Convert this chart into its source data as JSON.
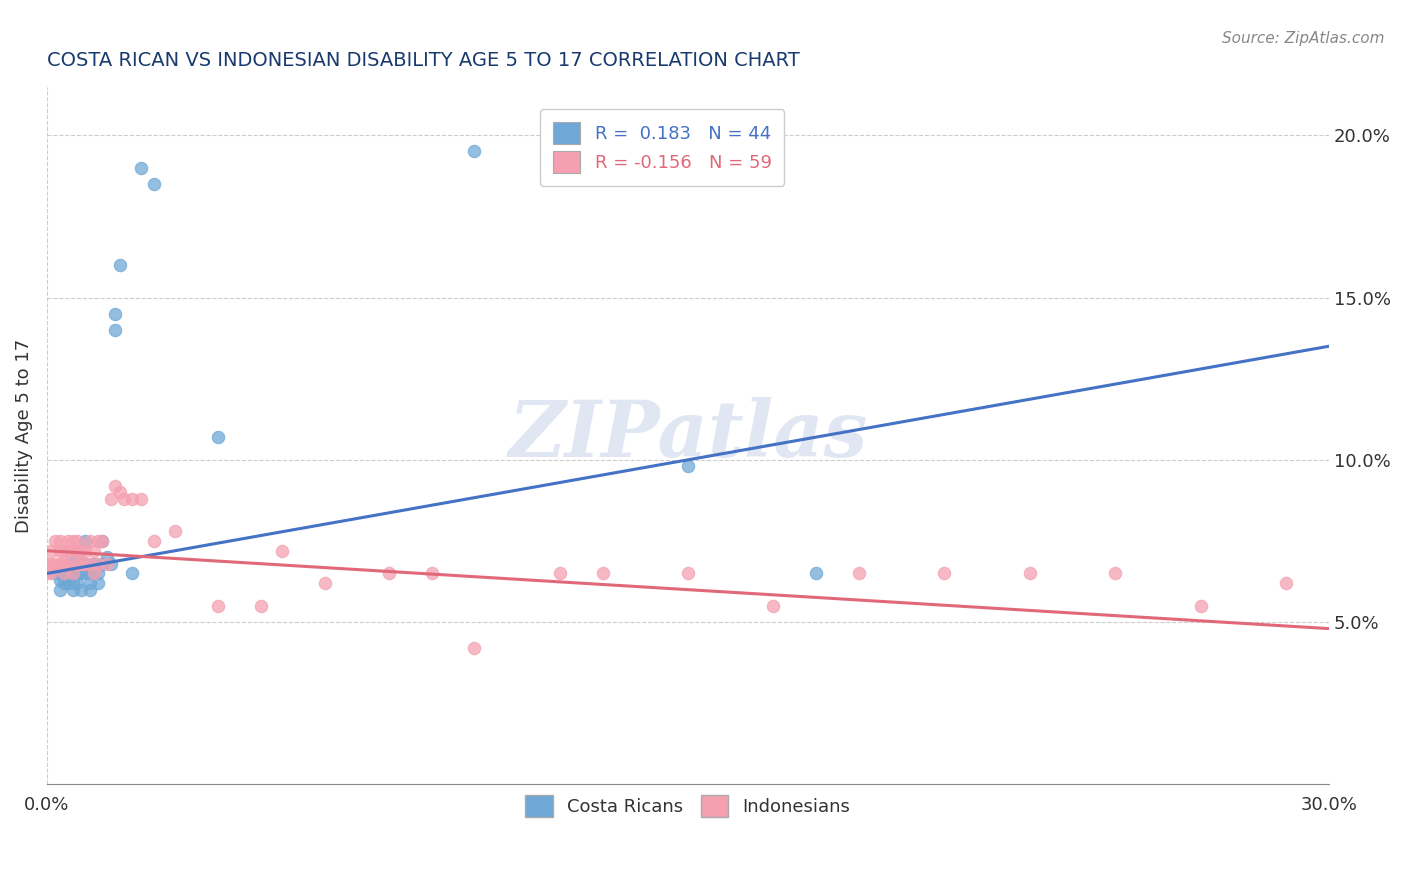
{
  "title": "COSTA RICAN VS INDONESIAN DISABILITY AGE 5 TO 17 CORRELATION CHART",
  "source": "Source: ZipAtlas.com",
  "ylabel": "Disability Age 5 to 17",
  "right_yticks": [
    "5.0%",
    "10.0%",
    "15.0%",
    "20.0%"
  ],
  "right_ytick_vals": [
    0.05,
    0.1,
    0.15,
    0.2
  ],
  "legend_cr_r": "0.183",
  "legend_cr_n": "44",
  "legend_id_r": "-0.156",
  "legend_id_n": "59",
  "legend_label_cr": "Costa Ricans",
  "legend_label_id": "Indonesians",
  "watermark": "ZIPatlas",
  "cr_color": "#6fa8d6",
  "id_color": "#f4a0b0",
  "cr_line_color": "#4472c4",
  "id_line_color": "#e06878",
  "background_color": "#ffffff",
  "xlim": [
    0.0,
    0.3
  ],
  "ylim": [
    0.0,
    0.215
  ],
  "costa_rican_x": [
    0.002,
    0.003,
    0.003,
    0.003,
    0.004,
    0.004,
    0.005,
    0.005,
    0.005,
    0.005,
    0.006,
    0.006,
    0.006,
    0.007,
    0.007,
    0.007,
    0.008,
    0.008,
    0.008,
    0.009,
    0.009,
    0.009,
    0.01,
    0.01,
    0.01,
    0.011,
    0.011,
    0.012,
    0.012,
    0.013,
    0.013,
    0.014,
    0.015,
    0.016,
    0.016,
    0.017,
    0.02,
    0.022,
    0.025,
    0.04,
    0.1,
    0.13,
    0.15,
    0.18
  ],
  "costa_rican_y": [
    0.065,
    0.065,
    0.063,
    0.06,
    0.065,
    0.062,
    0.068,
    0.065,
    0.063,
    0.062,
    0.065,
    0.062,
    0.06,
    0.07,
    0.065,
    0.062,
    0.068,
    0.065,
    0.06,
    0.075,
    0.068,
    0.065,
    0.065,
    0.062,
    0.06,
    0.068,
    0.065,
    0.065,
    0.062,
    0.075,
    0.068,
    0.07,
    0.068,
    0.145,
    0.14,
    0.16,
    0.065,
    0.19,
    0.185,
    0.107,
    0.195,
    0.197,
    0.098,
    0.065
  ],
  "indonesian_x": [
    0.0,
    0.0,
    0.001,
    0.001,
    0.001,
    0.002,
    0.002,
    0.003,
    0.003,
    0.003,
    0.004,
    0.004,
    0.004,
    0.005,
    0.005,
    0.005,
    0.006,
    0.006,
    0.006,
    0.007,
    0.007,
    0.007,
    0.008,
    0.008,
    0.009,
    0.009,
    0.01,
    0.01,
    0.011,
    0.011,
    0.012,
    0.012,
    0.013,
    0.014,
    0.015,
    0.016,
    0.017,
    0.018,
    0.02,
    0.022,
    0.025,
    0.03,
    0.04,
    0.05,
    0.055,
    0.065,
    0.08,
    0.09,
    0.1,
    0.12,
    0.13,
    0.15,
    0.17,
    0.19,
    0.21,
    0.23,
    0.25,
    0.27,
    0.29
  ],
  "indonesian_y": [
    0.068,
    0.065,
    0.072,
    0.068,
    0.065,
    0.075,
    0.068,
    0.075,
    0.072,
    0.068,
    0.072,
    0.068,
    0.065,
    0.075,
    0.072,
    0.068,
    0.075,
    0.072,
    0.065,
    0.075,
    0.072,
    0.068,
    0.072,
    0.068,
    0.072,
    0.068,
    0.075,
    0.068,
    0.072,
    0.065,
    0.075,
    0.068,
    0.075,
    0.068,
    0.088,
    0.092,
    0.09,
    0.088,
    0.088,
    0.088,
    0.075,
    0.078,
    0.055,
    0.055,
    0.072,
    0.062,
    0.065,
    0.065,
    0.042,
    0.065,
    0.065,
    0.065,
    0.055,
    0.065,
    0.065,
    0.065,
    0.065,
    0.055,
    0.062
  ]
}
